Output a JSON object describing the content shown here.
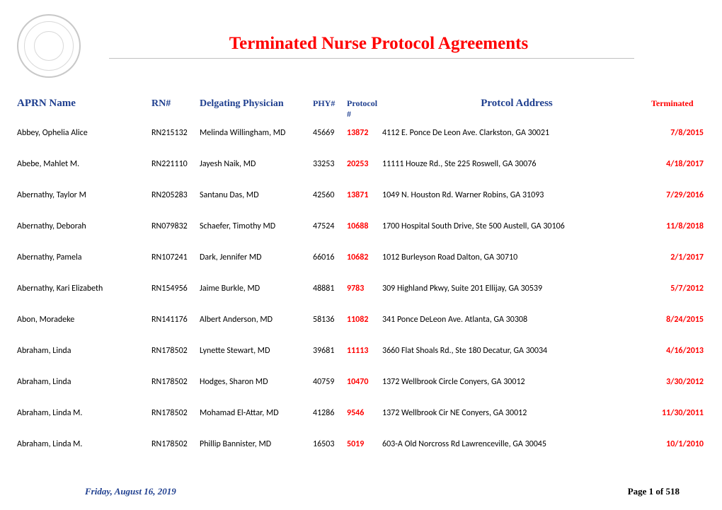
{
  "title": "Terminated Nurse Protocol Agreements",
  "headers": {
    "name": "APRN Name",
    "rn": "RN#",
    "physician": "Delgating Physician",
    "phy": "PHY#",
    "protocol": "Protocol #",
    "address": "Protcol Address",
    "terminated": "Terminated"
  },
  "rows": [
    {
      "name": "Abbey, Ophelia Alice",
      "rn": "RN215132",
      "physician": "Melinda Willingham, MD",
      "phy": "45669",
      "protocol": "13872",
      "address": "4112 E. Ponce De Leon Ave. Clarkston,  GA 30021",
      "terminated": "7/8/2015"
    },
    {
      "name": "Abebe, Mahlet M.",
      "rn": "RN221110",
      "physician": "Jayesh Naik, MD",
      "phy": "33253",
      "protocol": "20253",
      "address": "11111 Houze Rd., Ste 225 Roswell,  GA 30076",
      "terminated": "4/18/2017"
    },
    {
      "name": "Abernathy, Taylor M",
      "rn": "RN205283",
      "physician": "Santanu Das, MD",
      "phy": "42560",
      "protocol": "13871",
      "address": "1049 N. Houston Rd. Warner Robins,  GA 31093",
      "terminated": "7/29/2016"
    },
    {
      "name": "Abernathy, Deborah",
      "rn": "RN079832",
      "physician": "Schaefer, Timothy  MD",
      "phy": "47524",
      "protocol": "10688",
      "address": "1700 Hospital South Drive, Ste 500 Austell,  GA 30106",
      "terminated": "11/8/2018"
    },
    {
      "name": "Abernathy, Pamela",
      "rn": "RN107241",
      "physician": "Dark, Jennifer  MD",
      "phy": "66016",
      "protocol": "10682",
      "address": "1012 Burleyson Road Dalton,  GA 30710",
      "terminated": "2/1/2017"
    },
    {
      "name": "Abernathy, Kari Elizabeth",
      "rn": "RN154956",
      "physician": "Jaime Burkle, MD",
      "phy": "48881",
      "protocol": "9783",
      "address": "309 Highland Pkwy, Suite 201 Ellijay,  GA 30539",
      "terminated": "5/7/2012"
    },
    {
      "name": "Abon, Moradeke",
      "rn": "RN141176",
      "physician": "Albert Anderson, MD",
      "phy": "58136",
      "protocol": "11082",
      "address": "341 Ponce DeLeon Ave. Atlanta,  GA 30308",
      "terminated": "8/24/2015"
    },
    {
      "name": "Abraham, Linda",
      "rn": "RN178502",
      "physician": "Lynette Stewart, MD",
      "phy": "39681",
      "protocol": "11113",
      "address": "3660 Flat Shoals Rd., Ste 180 Decatur,  GA 30034",
      "terminated": "4/16/2013"
    },
    {
      "name": "Abraham, Linda",
      "rn": "RN178502",
      "physician": "Hodges, Sharon  MD",
      "phy": "40759",
      "protocol": "10470",
      "address": "1372 Wellbrook Circle Conyers,  GA 30012",
      "terminated": "3/30/2012"
    },
    {
      "name": "Abraham, Linda M.",
      "rn": "RN178502",
      "physician": "Mohamad El-Attar, MD",
      "phy": "41286",
      "protocol": "9546",
      "address": "1372 Wellbrook Cir NE Conyers,  GA 30012",
      "terminated": "11/30/2011"
    },
    {
      "name": "Abraham, Linda M.",
      "rn": "RN178502",
      "physician": "Phillip Bannister, MD",
      "phy": "16503",
      "protocol": "5019",
      "address": "603-A Old Norcross Rd Lawrenceville,  GA 30045",
      "terminated": "10/1/2010"
    }
  ],
  "footer": {
    "date": "Friday, August 16, 2019",
    "page": "Page 1 of 518"
  },
  "colors": {
    "red": "#ff0000",
    "blue": "#1f3f8f",
    "rule": "#c0c0c0",
    "seal": "#c8c8c8"
  }
}
